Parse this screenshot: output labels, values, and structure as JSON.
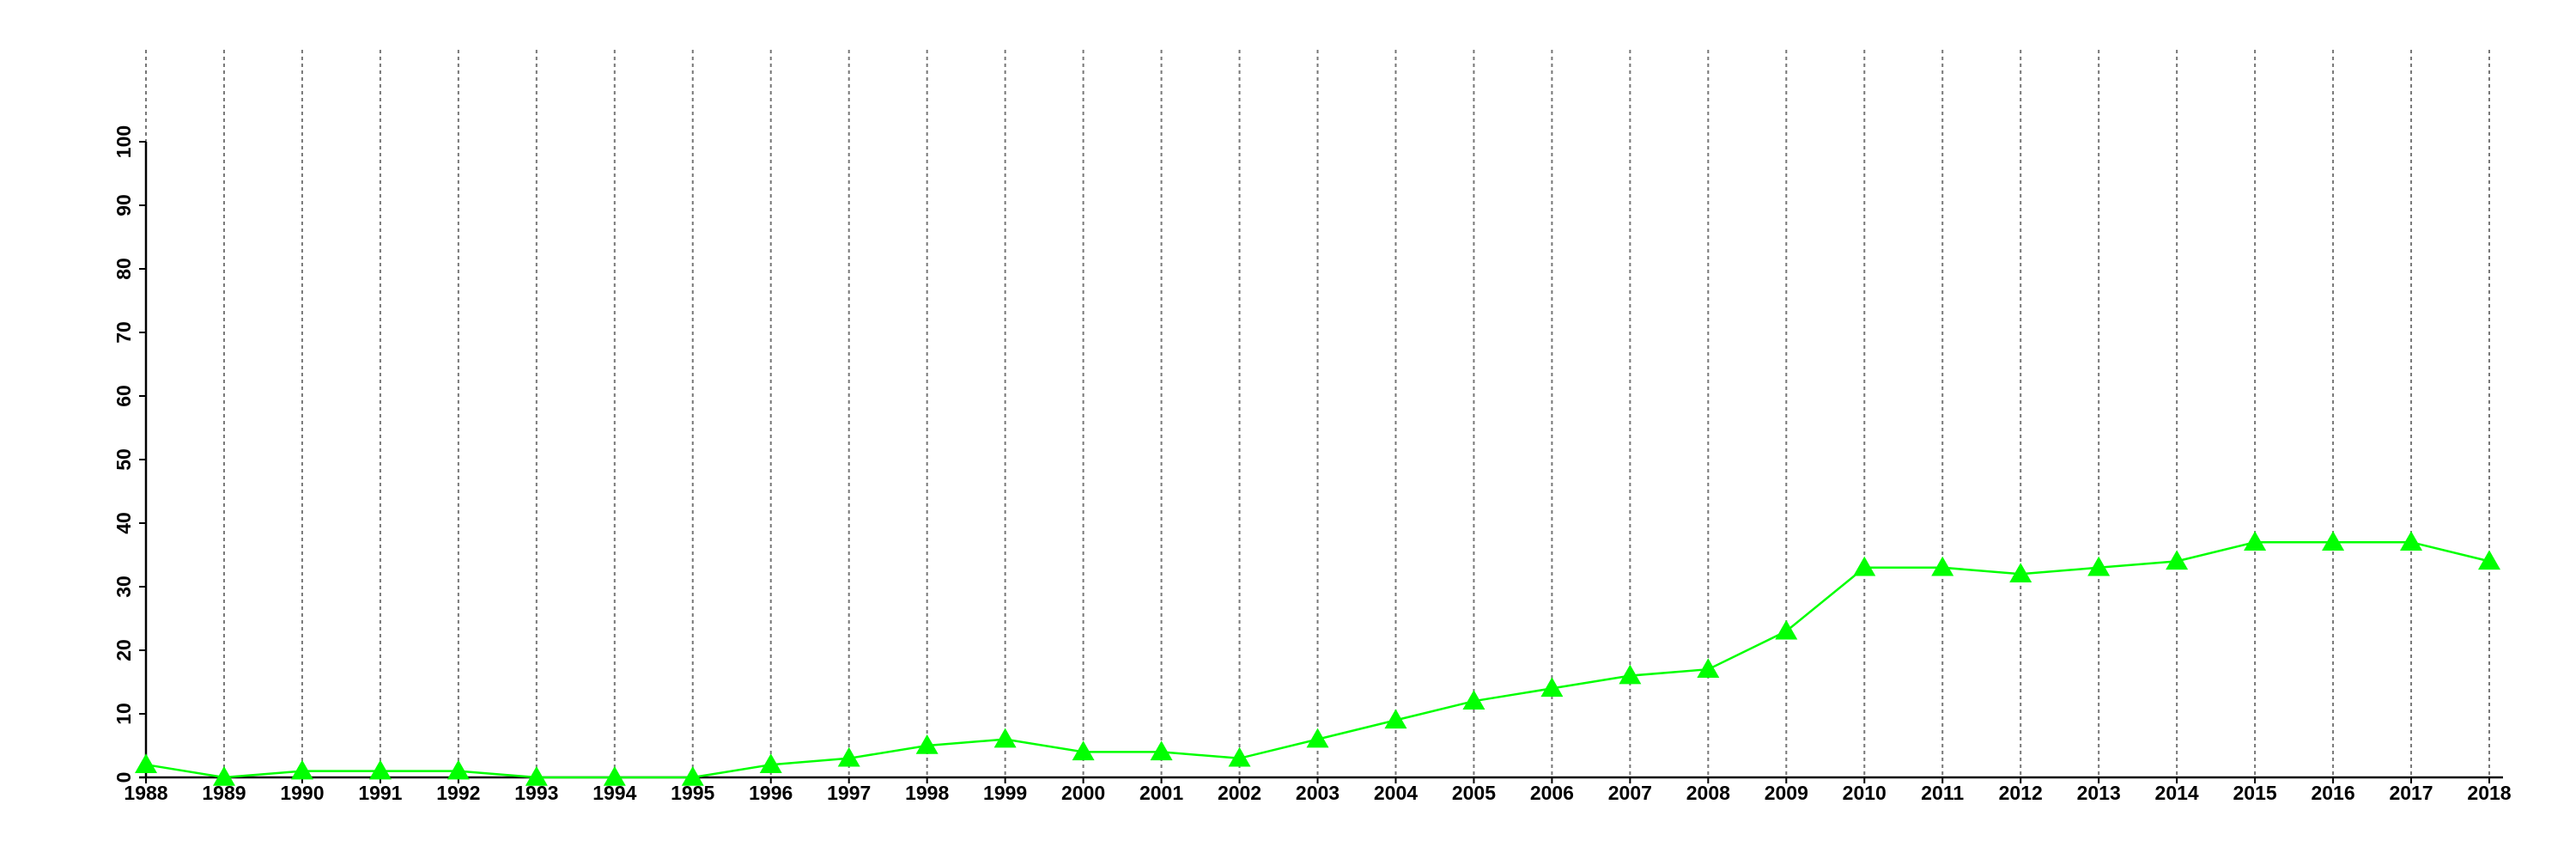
{
  "chart_data": {
    "type": "line",
    "x": [
      1988,
      1989,
      1990,
      1991,
      1992,
      1993,
      1994,
      1995,
      1996,
      1997,
      1998,
      1999,
      2000,
      2001,
      2002,
      2003,
      2004,
      2005,
      2006,
      2007,
      2008,
      2009,
      2010,
      2011,
      2012,
      2013,
      2014,
      2015,
      2016,
      2017,
      2018
    ],
    "values": [
      2,
      0,
      1,
      1,
      1,
      0,
      0,
      0,
      2,
      3,
      5,
      6,
      4,
      4,
      3,
      6,
      9,
      12,
      14,
      16,
      17,
      23,
      33,
      33,
      32,
      33,
      34,
      37,
      37,
      37,
      34
    ],
    "color": "#00ff00",
    "xlim": [
      1988,
      2018
    ],
    "xticks": [
      1988,
      1989,
      1990,
      1991,
      1992,
      1993,
      1994,
      1995,
      1996,
      1997,
      1998,
      1999,
      2000,
      2001,
      2002,
      2003,
      2004,
      2005,
      2006,
      2007,
      2008,
      2009,
      2010,
      2011,
      2012,
      2013,
      2014,
      2015,
      2016,
      2017,
      2018
    ],
    "ylim": [
      0,
      100
    ],
    "yticks": [
      0,
      10,
      20,
      30,
      40,
      50,
      60,
      70,
      80,
      90,
      100
    ],
    "grid": "x"
  }
}
